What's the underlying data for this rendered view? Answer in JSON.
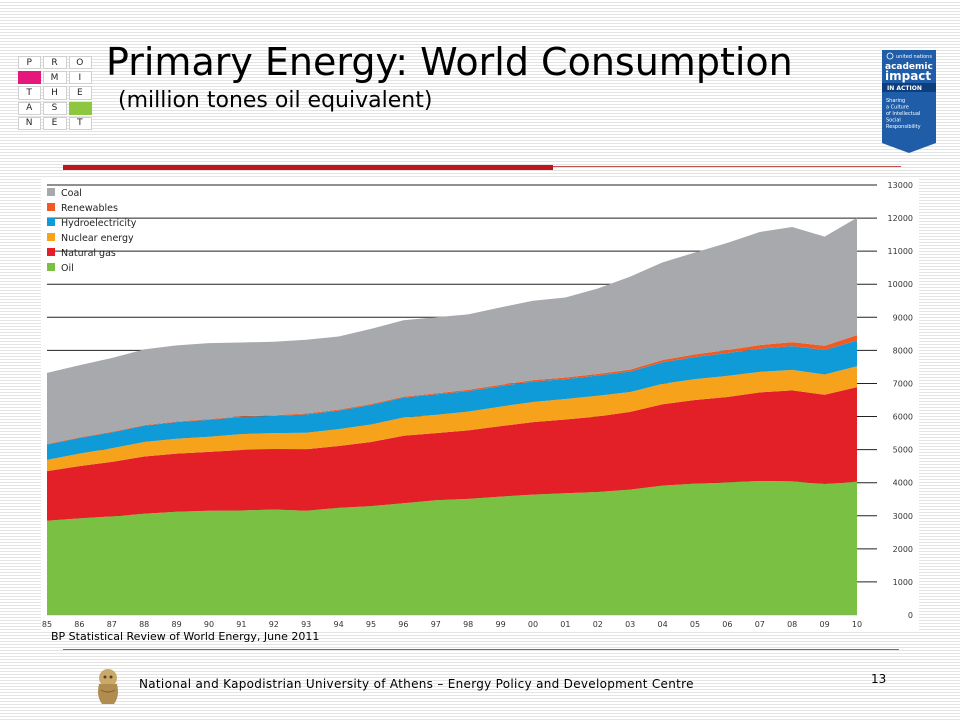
{
  "slide": {
    "title": "Primary Energy: World Consumption",
    "subtitle": "(million tones oil equivalent)",
    "source": "BP Statistical Review of World Energy, June 2011",
    "footer": "National and Kapodistrian University of Athens – Energy Policy and Development Centre",
    "page_number": "13"
  },
  "logo": {
    "cells": [
      "P",
      "R",
      "O",
      "",
      "M",
      "I",
      "T",
      "H",
      "E",
      "A",
      "S",
      "",
      "N",
      "E",
      "T"
    ],
    "colors": {
      "green": "#8dc63f",
      "pink": "#e6177a"
    }
  },
  "badge": {
    "top": "united nations",
    "brand1": "academic",
    "brand2": "impact",
    "banner": "IN ACTION",
    "lines": [
      "Sharing",
      "a Culture",
      "of Intellectual",
      "Social",
      "Responsibility"
    ],
    "color": "#1f5da8"
  },
  "chart_data": {
    "type": "area",
    "stacked": true,
    "x": [
      "85",
      "86",
      "87",
      "88",
      "89",
      "90",
      "91",
      "92",
      "93",
      "94",
      "95",
      "96",
      "97",
      "98",
      "99",
      "00",
      "01",
      "02",
      "03",
      "04",
      "05",
      "06",
      "07",
      "08",
      "09",
      "10"
    ],
    "series": [
      {
        "name": "Oil",
        "color": "#7ac143",
        "values": [
          2850,
          2920,
          2980,
          3060,
          3120,
          3150,
          3160,
          3190,
          3150,
          3240,
          3290,
          3380,
          3470,
          3510,
          3580,
          3640,
          3680,
          3720,
          3790,
          3910,
          3970,
          4010,
          4050,
          4040,
          3960,
          4030
        ]
      },
      {
        "name": "Natural gas",
        "color": "#e32027",
        "values": [
          1500,
          1580,
          1650,
          1730,
          1760,
          1780,
          1830,
          1830,
          1860,
          1870,
          1940,
          2040,
          2030,
          2070,
          2130,
          2190,
          2230,
          2280,
          2350,
          2460,
          2530,
          2580,
          2680,
          2750,
          2700,
          2860
        ]
      },
      {
        "name": "Nuclear energy",
        "color": "#f7a21b",
        "values": [
          340,
          380,
          410,
          440,
          450,
          460,
          480,
          480,
          500,
          510,
          530,
          550,
          550,
          570,
          590,
          610,
          620,
          630,
          600,
          620,
          630,
          640,
          620,
          620,
          610,
          630
        ]
      },
      {
        "name": "Hydroelectricity",
        "color": "#0f9ad8",
        "values": [
          460,
          470,
          480,
          490,
          500,
          510,
          520,
          520,
          550,
          560,
          590,
          600,
          620,
          620,
          620,
          620,
          600,
          610,
          620,
          650,
          670,
          690,
          700,
          720,
          740,
          780
        ]
      },
      {
        "name": "Renewables",
        "color": "#f15a24",
        "values": [
          20,
          20,
          20,
          20,
          20,
          20,
          20,
          20,
          30,
          30,
          30,
          30,
          30,
          40,
          40,
          40,
          50,
          50,
          60,
          70,
          80,
          90,
          110,
          120,
          130,
          160
        ]
      },
      {
        "name": "Coal",
        "color": "#a7a9ac",
        "values": [
          2150,
          2180,
          2230,
          2290,
          2300,
          2300,
          2230,
          2220,
          2230,
          2210,
          2270,
          2310,
          2300,
          2280,
          2340,
          2400,
          2420,
          2580,
          2810,
          2950,
          3080,
          3240,
          3420,
          3480,
          3300,
          3550
        ]
      }
    ],
    "legend_order": [
      "Coal",
      "Renewables",
      "Hydroelectricity",
      "Nuclear energy",
      "Natural gas",
      "Oil"
    ],
    "y_ticks": [
      0,
      1000,
      2000,
      3000,
      4000,
      5000,
      6000,
      7000,
      8000,
      9000,
      10000,
      11000,
      12000,
      13000
    ],
    "ylim": [
      0,
      13000
    ],
    "y_axis_side": "right",
    "legend_position": "top-left",
    "grid": "horizontal lines"
  }
}
